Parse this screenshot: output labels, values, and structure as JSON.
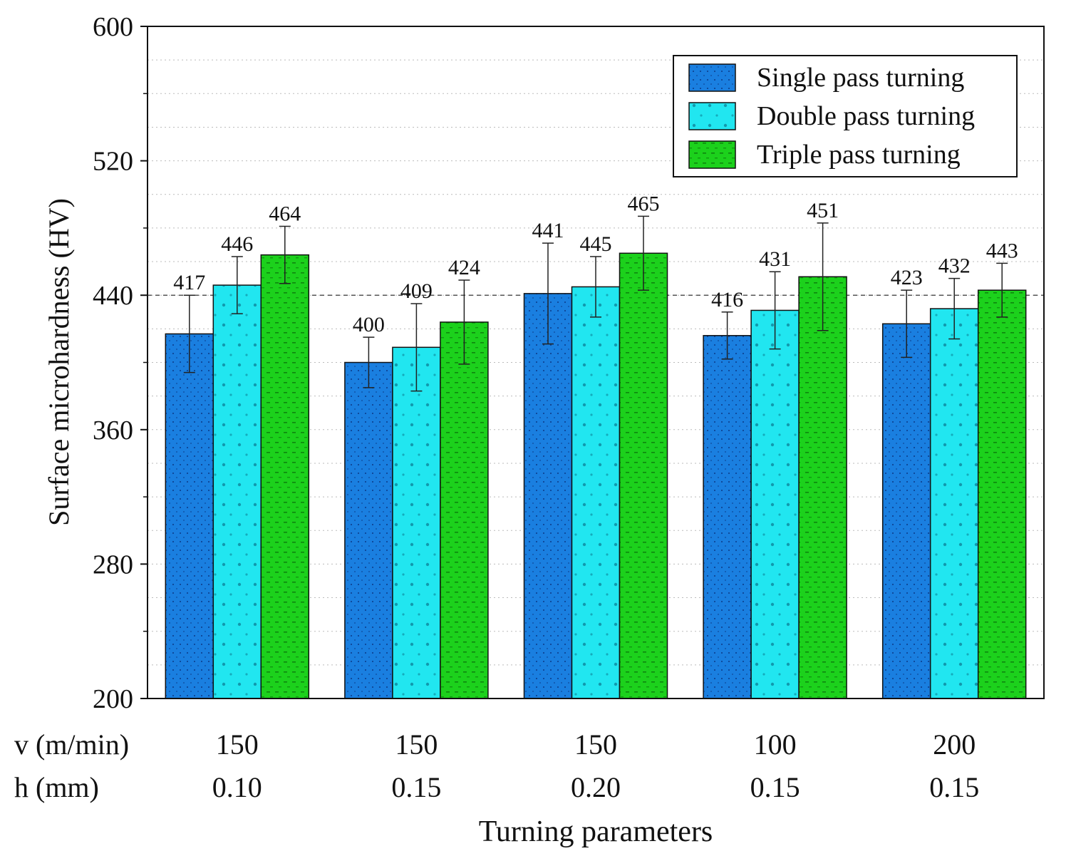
{
  "chart_data": {
    "type": "bar",
    "title": "",
    "xlabel": "Turning parameters",
    "ylabel": "Surface microhardness (HV)",
    "ylim": [
      200,
      600
    ],
    "yticks": [
      "200",
      "280",
      "360",
      "440",
      "520",
      "600"
    ],
    "grid": true,
    "reference_line": 440,
    "legend_position": "top-right",
    "param_rows": [
      {
        "label": "v (m/min)",
        "values": [
          "150",
          "150",
          "150",
          "100",
          "200"
        ]
      },
      {
        "label": "h (mm)",
        "values": [
          "0.10",
          "0.15",
          "0.20",
          "0.15",
          "0.15"
        ]
      }
    ],
    "series": [
      {
        "name": "Single pass turning",
        "color": "#1a7fe0",
        "values": [
          417,
          400,
          441,
          416,
          423
        ],
        "error": [
          23,
          15,
          30,
          14,
          20
        ],
        "labels": [
          "417",
          "400",
          "441",
          "416",
          "423"
        ]
      },
      {
        "name": "Double pass turning",
        "color": "#21e6f0",
        "values": [
          446,
          409,
          445,
          431,
          432
        ],
        "error": [
          17,
          26,
          18,
          23,
          18
        ],
        "labels": [
          "446",
          "409",
          "445",
          "431",
          "432"
        ]
      },
      {
        "name": "Triple pass turning",
        "color": "#1cd11c",
        "values": [
          464,
          424,
          465,
          451,
          443
        ],
        "error": [
          17,
          25,
          22,
          32,
          16
        ],
        "labels": [
          "464",
          "424",
          "465",
          "451",
          "443"
        ]
      }
    ]
  }
}
